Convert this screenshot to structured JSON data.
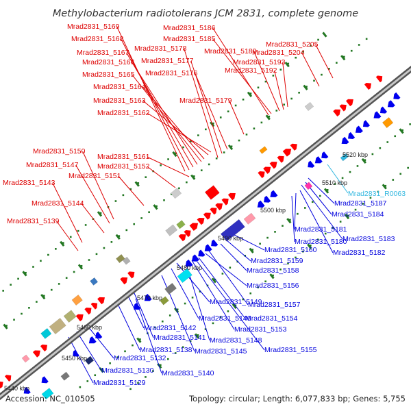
{
  "title": "Methylobacterium radiotolerans JCM 2831, complete genome",
  "footer": {
    "accession": "Accession: NC_010505",
    "summary": "Topology: circular; Length: 6,077,833 bp; Genes: 5,755"
  },
  "colors": {
    "forward_label": "#dd0000",
    "reverse_label": "#0000dd",
    "rna_label": "#33b8e0",
    "forward_gene": "#ff0000",
    "reverse_gene": "#0000ee",
    "backbone": "#888888",
    "tick": "#227722"
  },
  "tick_labels": [
    "5440 kbp",
    "5450 kbp",
    "5460 kbp",
    "5470 kbp",
    "5480 kbp",
    "5490 kbp",
    "5500 kbp",
    "5510 kbp",
    "5520 kbp"
  ],
  "labels_forward": [
    "Mrad2831_5169",
    "Mrad2831_5168",
    "Mrad2831_5167",
    "Mrad2831_5166",
    "Mrad2831_5165",
    "Mrad2831_5164",
    "Mrad2831_5163",
    "Mrad2831_5162",
    "Mrad2831_5186",
    "Mrad2831_5185",
    "Mrad2831_5178",
    "Mrad2831_5177",
    "Mrad2831_5176",
    "Mrad2831_5179",
    "Mrad2831_5189",
    "Mrad2831_5192",
    "Mrad2831_5193",
    "Mrad2831_5204",
    "Mrad2831_5205",
    "Mrad2831_5150",
    "Mrad2831_5147",
    "Mrad2831_5161",
    "Mrad2831_5152",
    "Mrad2831_5151",
    "Mrad2831_5143",
    "Mrad2831_5144",
    "Mrad2831_5139"
  ],
  "labels_reverse": [
    "Mrad2831_5187",
    "Mrad2831_5184",
    "Mrad2831_5181",
    "Mrad2831_5183",
    "Mrad2831_5180",
    "Mrad2831_5182",
    "Mrad2831_5160",
    "Mrad2831_5159",
    "Mrad2831_5158",
    "Mrad2831_5156",
    "Mrad2831_5157",
    "Mrad2831_5149",
    "Mrad2831_5146",
    "Mrad2831_5154",
    "Mrad2831_5153",
    "Mrad2831_5142",
    "Mrad2831_5141",
    "Mrad2831_5148",
    "Mrad2831_5138",
    "Mrad2831_5145",
    "Mrad2831_5155",
    "Mrad2831_5132",
    "Mrad2831_5130",
    "Mrad2831_5140",
    "Mrad2831_5129"
  ],
  "labels_rna": [
    "Mrad2831_R0063"
  ]
}
